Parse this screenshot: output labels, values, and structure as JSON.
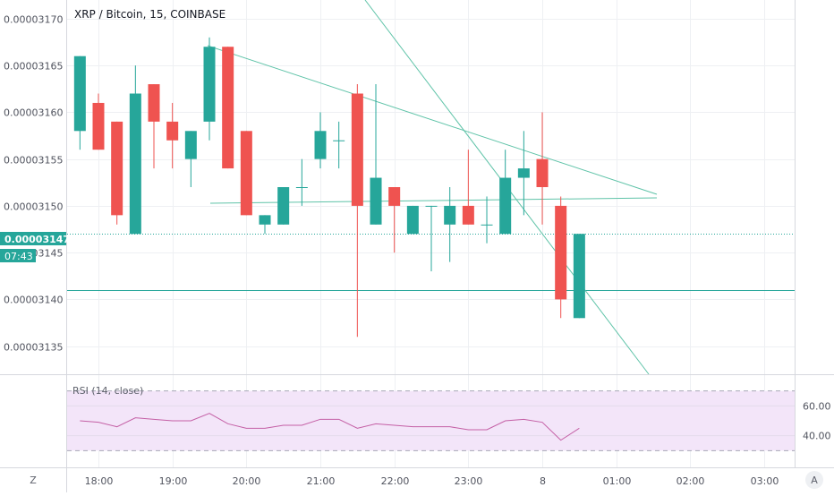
{
  "header": {
    "symbol": "XRP / Bitcoin",
    "interval": "15",
    "exchange": "COINBASE"
  },
  "price_axis": {
    "ticks": [
      "0.00003170",
      "0.00003165",
      "0.00003160",
      "0.00003155",
      "0.00003150",
      "0.00003145",
      "0.00003140",
      "0.00003135"
    ],
    "last_price": "0.00003147",
    "countdown": "07:43"
  },
  "time_axis": {
    "ticks": [
      "18:00",
      "19:00",
      "20:00",
      "21:00",
      "22:00",
      "23:00",
      "8",
      "01:00",
      "02:00",
      "03:00"
    ]
  },
  "rsi": {
    "label": "RSI (14, close)",
    "ticks": [
      "60.00",
      "40.00"
    ],
    "upper_band": 70,
    "lower_band": 30,
    "values": [
      50,
      49,
      46,
      52,
      51,
      50,
      50,
      55,
      48,
      45,
      45,
      47,
      47,
      51,
      51,
      45,
      48,
      47,
      46,
      46,
      46,
      44,
      44,
      50,
      51,
      49,
      37,
      45
    ]
  },
  "corner": {
    "left_label": "Z",
    "right_label": "A"
  },
  "colors": {
    "up": "#26a69a",
    "down": "#ef5350",
    "rsi_line": "#c45fa5",
    "rsi_band_fill": "#f3e5f9",
    "trendline": "#5fc3a8",
    "grid": "#eef0f3"
  },
  "chart_data": {
    "type": "candlestick",
    "title": "XRP / Bitcoin, 15, COINBASE",
    "ylim": [
      3.132e-05,
      3.172e-05
    ],
    "y_ticks": [
      3.17e-05,
      3.165e-05,
      3.16e-05,
      3.155e-05,
      3.15e-05,
      3.145e-05,
      3.14e-05,
      3.135e-05
    ],
    "x_ticks": [
      "18:00",
      "19:00",
      "20:00",
      "21:00",
      "22:00",
      "23:00",
      "8",
      "01:00",
      "02:00",
      "03:00"
    ],
    "bar_interval_minutes": 15,
    "first_bar": "17:45",
    "candles": [
      {
        "o": 3.158e-05,
        "h": 3.166e-05,
        "l": 3.156e-05,
        "c": 3.166e-05
      },
      {
        "o": 3.161e-05,
        "h": 3.162e-05,
        "l": 3.156e-05,
        "c": 3.156e-05
      },
      {
        "o": 3.159e-05,
        "h": 3.159e-05,
        "l": 3.148e-05,
        "c": 3.149e-05
      },
      {
        "o": 3.147e-05,
        "h": 3.165e-05,
        "l": 3.147e-05,
        "c": 3.162e-05
      },
      {
        "o": 3.163e-05,
        "h": 3.163e-05,
        "l": 3.154e-05,
        "c": 3.159e-05
      },
      {
        "o": 3.159e-05,
        "h": 3.161e-05,
        "l": 3.154e-05,
        "c": 3.157e-05
      },
      {
        "o": 3.155e-05,
        "h": 3.158e-05,
        "l": 3.152e-05,
        "c": 3.158e-05
      },
      {
        "o": 3.159e-05,
        "h": 3.168e-05,
        "l": 3.157e-05,
        "c": 3.167e-05
      },
      {
        "o": 3.167e-05,
        "h": 3.167e-05,
        "l": 3.154e-05,
        "c": 3.154e-05
      },
      {
        "o": 3.158e-05,
        "h": 3.158e-05,
        "l": 3.149e-05,
        "c": 3.149e-05
      },
      {
        "o": 3.148e-05,
        "h": 3.149e-05,
        "l": 3.147e-05,
        "c": 3.149e-05
      },
      {
        "o": 3.148e-05,
        "h": 3.152e-05,
        "l": 3.148e-05,
        "c": 3.152e-05
      },
      {
        "o": 3.152e-05,
        "h": 3.155e-05,
        "l": 3.15e-05,
        "c": 3.152e-05
      },
      {
        "o": 3.155e-05,
        "h": 3.16e-05,
        "l": 3.154e-05,
        "c": 3.158e-05
      },
      {
        "o": 3.157e-05,
        "h": 3.159e-05,
        "l": 3.154e-05,
        "c": 3.157e-05
      },
      {
        "o": 3.162e-05,
        "h": 3.163e-05,
        "l": 3.136e-05,
        "c": 3.15e-05
      },
      {
        "o": 3.148e-05,
        "h": 3.163e-05,
        "l": 3.148e-05,
        "c": 3.153e-05
      },
      {
        "o": 3.152e-05,
        "h": 3.152e-05,
        "l": 3.145e-05,
        "c": 3.15e-05
      },
      {
        "o": 3.147e-05,
        "h": 3.15e-05,
        "l": 3.147e-05,
        "c": 3.15e-05
      },
      {
        "o": 3.15e-05,
        "h": 3.15e-05,
        "l": 3.143e-05,
        "c": 3.15e-05
      },
      {
        "o": 3.148e-05,
        "h": 3.152e-05,
        "l": 3.144e-05,
        "c": 3.15e-05
      },
      {
        "o": 3.15e-05,
        "h": 3.156e-05,
        "l": 3.148e-05,
        "c": 3.148e-05
      },
      {
        "o": 3.148e-05,
        "h": 3.151e-05,
        "l": 3.146e-05,
        "c": 3.148e-05
      },
      {
        "o": 3.147e-05,
        "h": 3.156e-05,
        "l": 3.147e-05,
        "c": 3.153e-05
      },
      {
        "o": 3.153e-05,
        "h": 3.158e-05,
        "l": 3.149e-05,
        "c": 3.154e-05
      },
      {
        "o": 3.155e-05,
        "h": 3.16e-05,
        "l": 3.148e-05,
        "c": 3.152e-05
      },
      {
        "o": 3.15e-05,
        "h": 3.151e-05,
        "l": 3.138e-05,
        "c": 3.14e-05
      },
      {
        "o": 3.138e-05,
        "h": 3.147e-05,
        "l": 3.138e-05,
        "c": 3.147e-05
      }
    ],
    "horizontal_lines": [
      {
        "price": 3.147e-05,
        "style": "dotted"
      },
      {
        "price": 3.141e-05,
        "style": "solid"
      }
    ]
  }
}
